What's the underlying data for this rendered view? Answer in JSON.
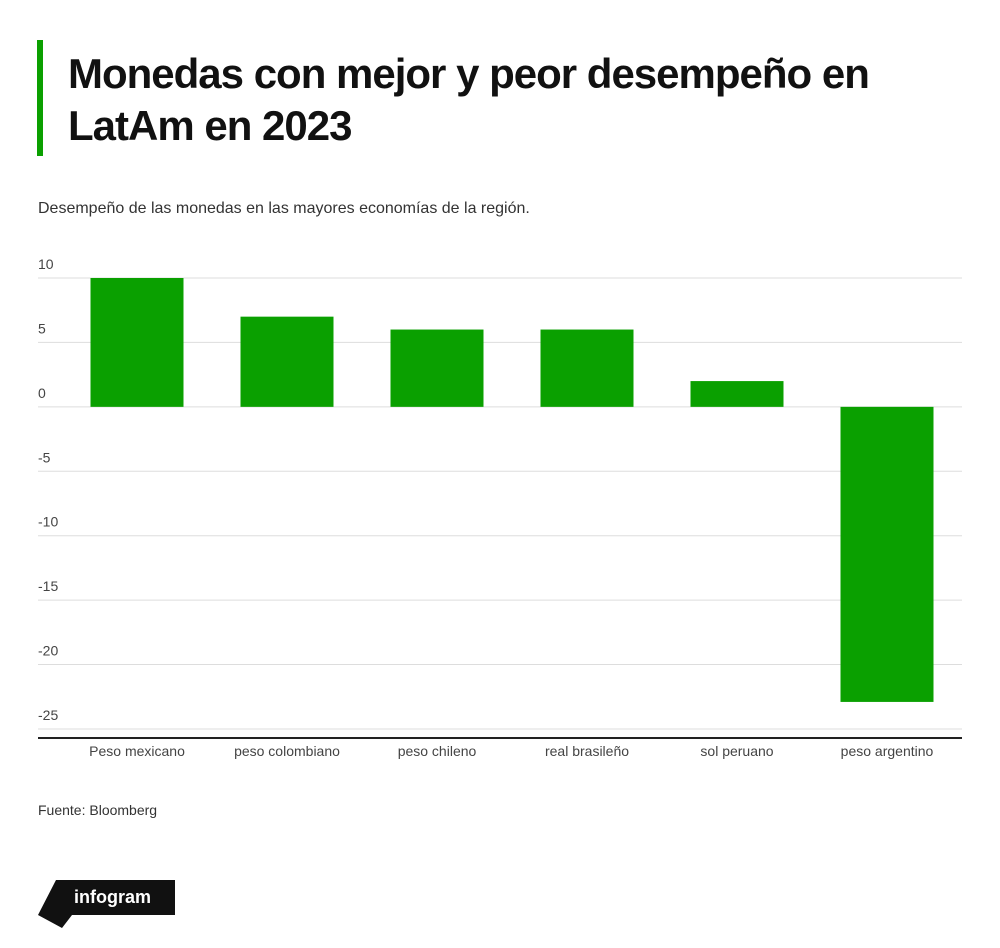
{
  "title": "Monedas con mejor y peor desempeño en LatAm en 2023",
  "chart_data": {
    "type": "bar",
    "subtitle": "Desempeño de las monedas en las mayores economías de la región.",
    "categories": [
      "Peso mexicano",
      "peso colombiano",
      "peso chileno",
      "real brasileño",
      "sol peruano",
      "peso argentino"
    ],
    "values": [
      10,
      7,
      6,
      6,
      2,
      -22.9
    ],
    "color": "#0aa000",
    "ylim": [
      -25.7,
      10
    ],
    "yticks": [
      10,
      5,
      0,
      -5,
      -10,
      -15,
      -20,
      -25
    ],
    "grid": true
  },
  "source": "Fuente: Bloomberg",
  "logo": "infogram"
}
